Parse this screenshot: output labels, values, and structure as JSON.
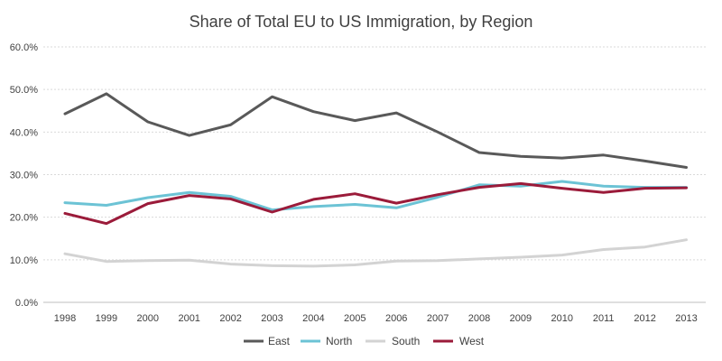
{
  "chart_data": {
    "type": "line",
    "title": "Share of Total EU to US Immigration, by Region",
    "xlabel": "",
    "ylabel": "",
    "ylim": [
      0,
      60
    ],
    "y_ticks": [
      "0.0%",
      "10.0%",
      "20.0%",
      "30.0%",
      "40.0%",
      "50.0%",
      "60.0%"
    ],
    "y_tick_values": [
      0,
      10,
      20,
      30,
      40,
      50,
      60
    ],
    "categories": [
      "1998",
      "1999",
      "2000",
      "2001",
      "2002",
      "2003",
      "2004",
      "2005",
      "2006",
      "2007",
      "2008",
      "2009",
      "2010",
      "2011",
      "2012",
      "2013"
    ],
    "grid": true,
    "legend_position": "bottom",
    "series": [
      {
        "name": "East",
        "color": "#595959",
        "values": [
          44.3,
          49.0,
          42.4,
          39.2,
          41.7,
          48.3,
          44.8,
          42.7,
          44.5,
          40.0,
          35.2,
          34.3,
          33.9,
          34.6,
          33.2,
          31.7
        ]
      },
      {
        "name": "North",
        "color": "#6cc3d5",
        "values": [
          23.4,
          22.8,
          24.6,
          25.8,
          24.9,
          21.7,
          22.5,
          23.0,
          22.2,
          24.7,
          27.6,
          27.3,
          28.4,
          27.3,
          27.0,
          27.0
        ]
      },
      {
        "name": "South",
        "color": "#d3d3d3",
        "values": [
          11.4,
          9.6,
          9.8,
          9.9,
          9.0,
          8.6,
          8.5,
          8.8,
          9.7,
          9.8,
          10.2,
          10.6,
          11.1,
          12.4,
          13.0,
          14.7
        ]
      },
      {
        "name": "West",
        "color": "#9b1b3a",
        "values": [
          20.9,
          18.5,
          23.2,
          25.1,
          24.3,
          21.2,
          24.2,
          25.5,
          23.3,
          25.3,
          27.0,
          27.9,
          26.8,
          25.8,
          26.8,
          26.9
        ]
      }
    ]
  }
}
